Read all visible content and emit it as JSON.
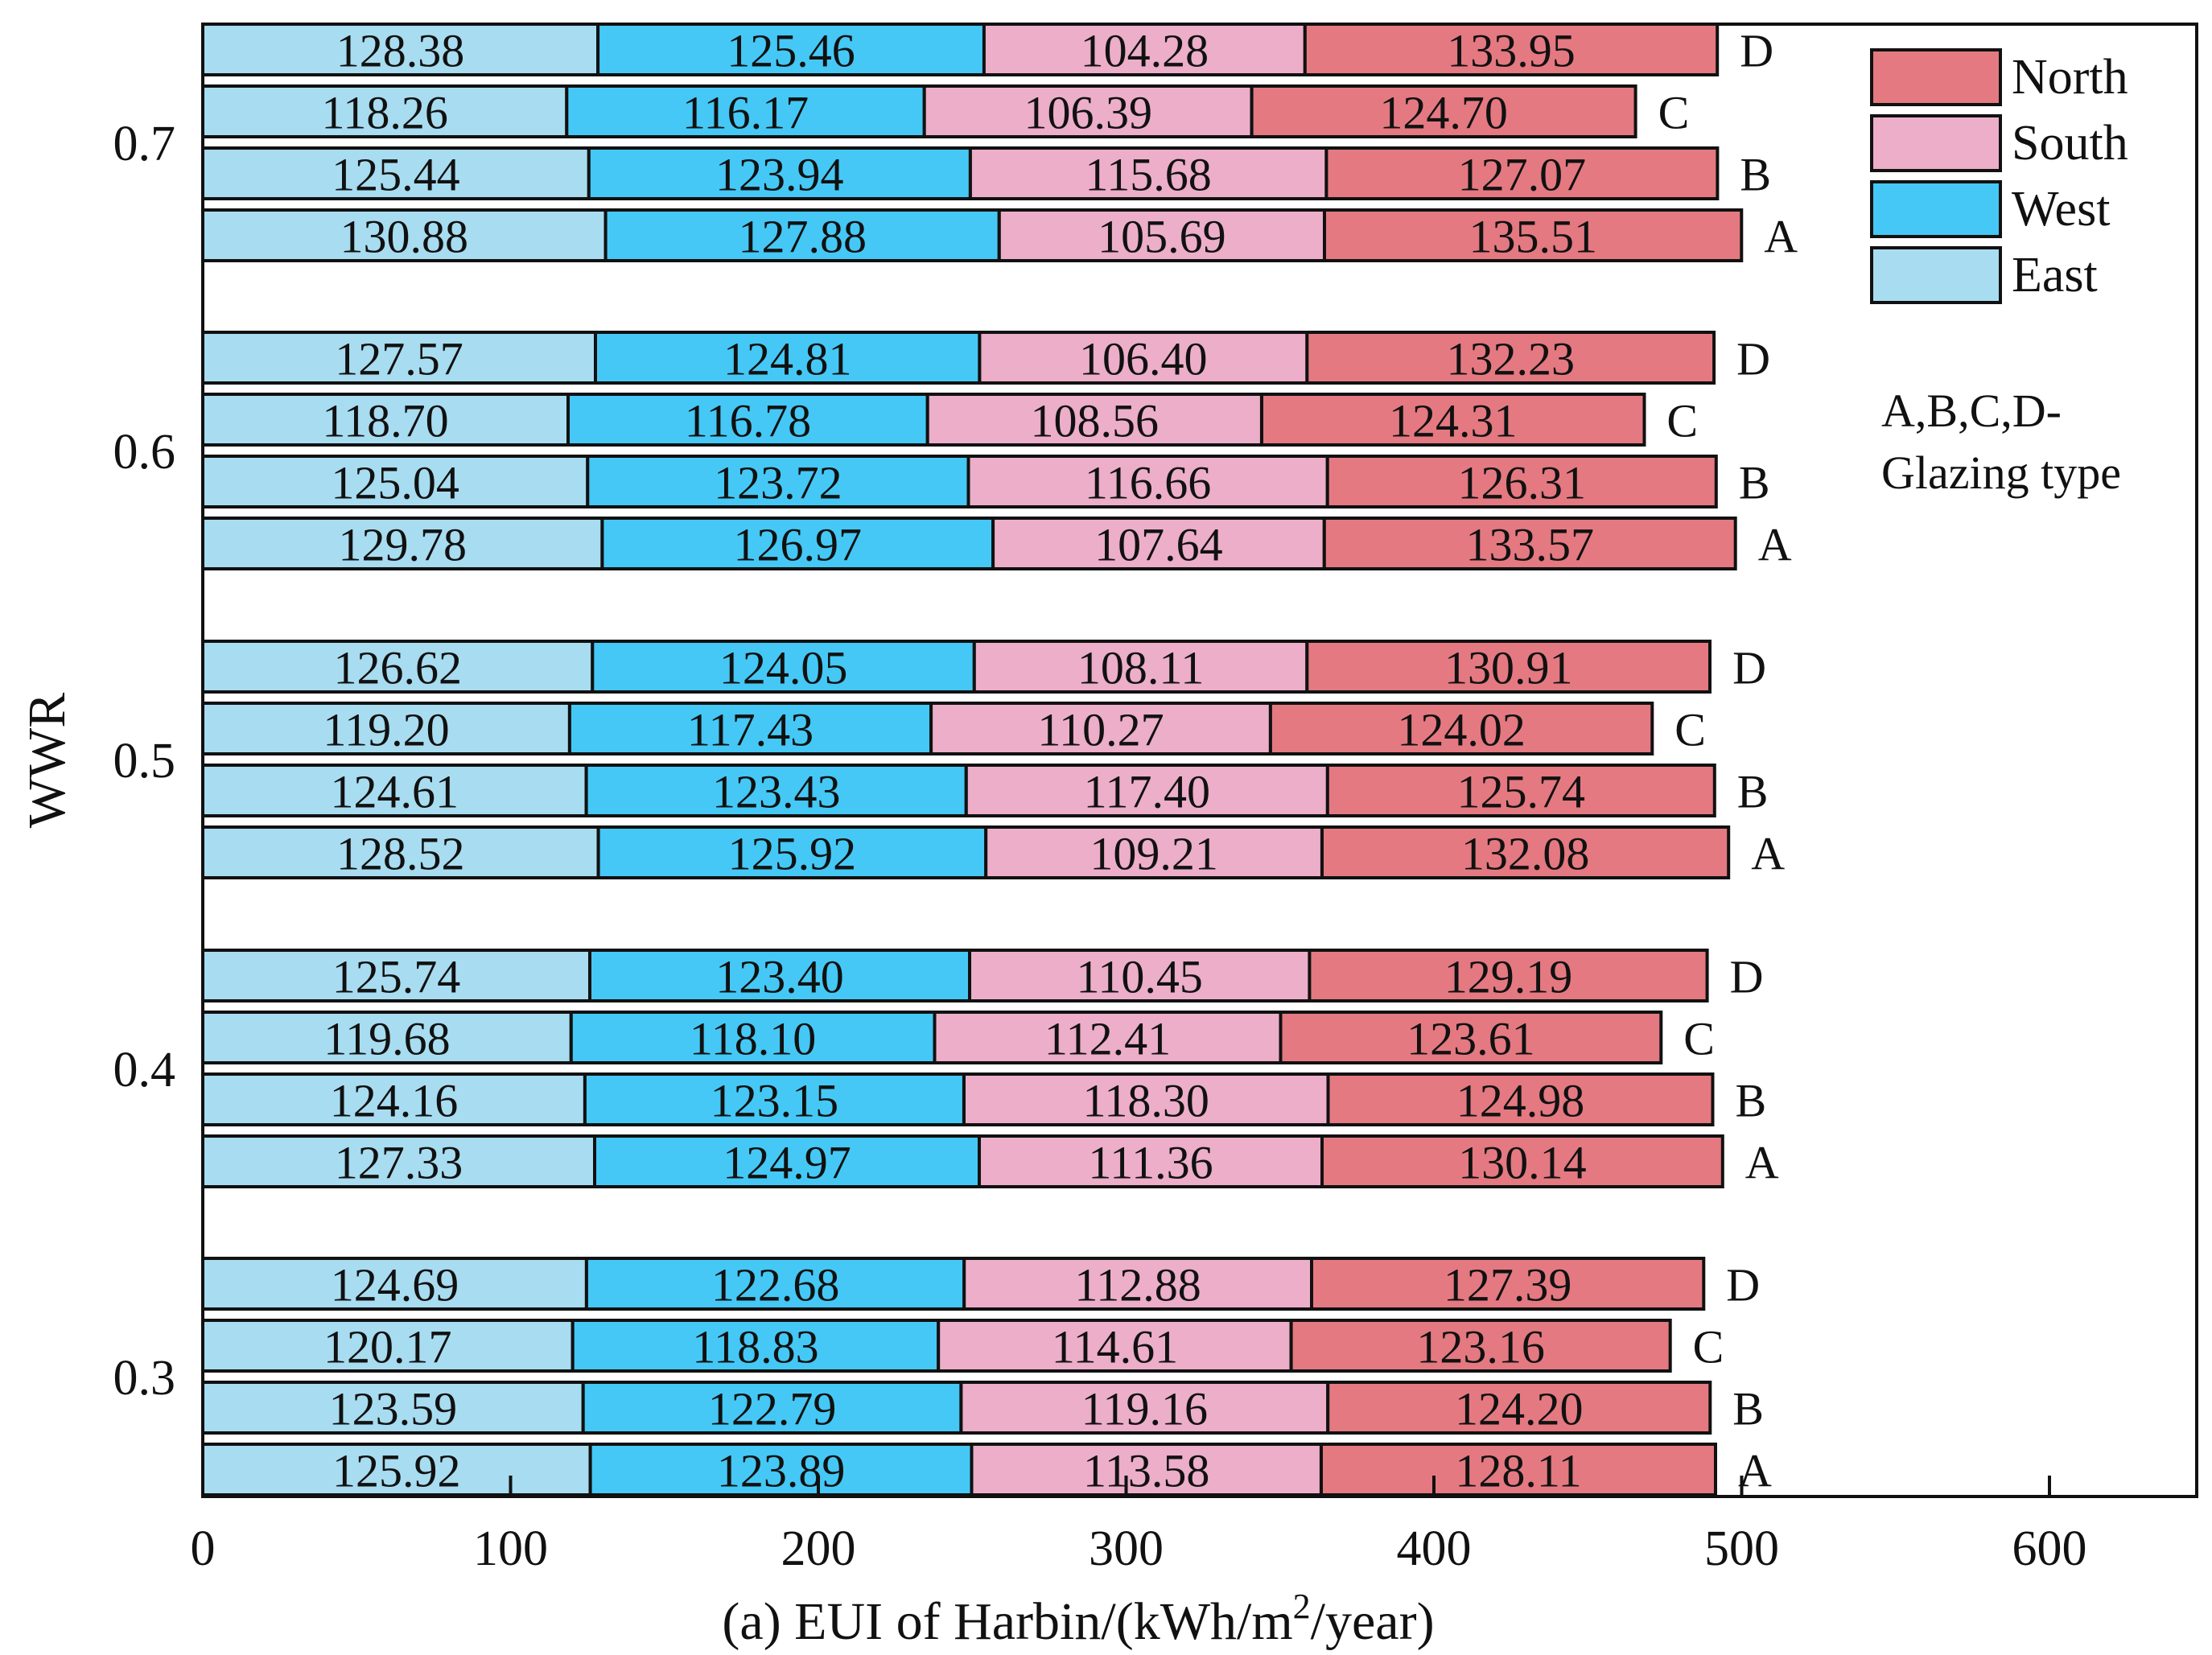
{
  "chart_data": {
    "type": "bar",
    "orientation": "horizontal",
    "stacked": true,
    "xlabel_main": "(a) EUI of Harbin/(kWh/m",
    "xlabel_sup": "2",
    "xlabel_tail": "/year)",
    "ylabel": "WWR",
    "xlim": [
      0,
      650
    ],
    "xticks": [
      0,
      100,
      200,
      300,
      400,
      500,
      600
    ],
    "xtick_labels": [
      "0",
      "100",
      "200",
      "300",
      "400",
      "500",
      "600"
    ],
    "series_order": [
      "East",
      "West",
      "South",
      "North"
    ],
    "colors": {
      "East": "#a8dcf0",
      "West": "#45c8f5",
      "South": "#ecaec9",
      "North": "#e47981",
      "border": "#111111"
    },
    "groups": [
      {
        "wwr": "0.7",
        "bars": [
          {
            "type": "D",
            "values": [
              128.38,
              125.46,
              104.28,
              133.95
            ]
          },
          {
            "type": "C",
            "values": [
              118.26,
              116.17,
              106.39,
              124.7
            ]
          },
          {
            "type": "B",
            "values": [
              125.44,
              123.94,
              115.68,
              127.07
            ]
          },
          {
            "type": "A",
            "values": [
              130.88,
              127.88,
              105.69,
              135.51
            ]
          }
        ]
      },
      {
        "wwr": "0.6",
        "bars": [
          {
            "type": "D",
            "values": [
              127.57,
              124.81,
              106.4,
              132.23
            ]
          },
          {
            "type": "C",
            "values": [
              118.7,
              116.78,
              108.56,
              124.31
            ]
          },
          {
            "type": "B",
            "values": [
              125.04,
              123.72,
              116.66,
              126.31
            ]
          },
          {
            "type": "A",
            "values": [
              129.78,
              126.97,
              107.64,
              133.57
            ]
          }
        ]
      },
      {
        "wwr": "0.5",
        "bars": [
          {
            "type": "D",
            "values": [
              126.62,
              124.05,
              108.11,
              130.91
            ]
          },
          {
            "type": "C",
            "values": [
              119.2,
              117.43,
              110.27,
              124.02
            ]
          },
          {
            "type": "B",
            "values": [
              124.61,
              123.43,
              117.4,
              125.74
            ]
          },
          {
            "type": "A",
            "values": [
              128.52,
              125.92,
              109.21,
              132.08
            ]
          }
        ]
      },
      {
        "wwr": "0.4",
        "bars": [
          {
            "type": "D",
            "values": [
              125.74,
              123.4,
              110.45,
              129.19
            ]
          },
          {
            "type": "C",
            "values": [
              119.68,
              118.1,
              112.41,
              123.61
            ]
          },
          {
            "type": "B",
            "values": [
              124.16,
              123.15,
              118.3,
              124.98
            ]
          },
          {
            "type": "A",
            "values": [
              127.33,
              124.97,
              111.36,
              130.14
            ]
          }
        ]
      },
      {
        "wwr": "0.3",
        "bars": [
          {
            "type": "D",
            "values": [
              124.69,
              122.68,
              112.88,
              127.39
            ]
          },
          {
            "type": "C",
            "values": [
              120.17,
              118.83,
              114.61,
              123.16
            ]
          },
          {
            "type": "B",
            "values": [
              123.59,
              122.79,
              119.16,
              124.2
            ]
          },
          {
            "type": "A",
            "values": [
              125.92,
              123.89,
              113.58,
              128.11
            ]
          }
        ]
      }
    ],
    "legend": {
      "position": "top-right",
      "entries": [
        "North",
        "South",
        "West",
        "East"
      ]
    },
    "annotation": [
      "A,B,C,D-",
      "Glazing type"
    ]
  }
}
